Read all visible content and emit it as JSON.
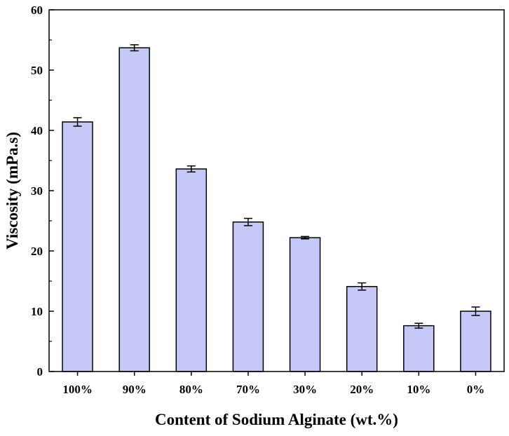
{
  "chart_data": {
    "type": "bar",
    "title": "",
    "xlabel": "Content of Sodium Alginate (wt.%)",
    "ylabel": "Viscosity (mPa.s)",
    "ylim": [
      0,
      60
    ],
    "yticks": [
      0,
      10,
      20,
      30,
      40,
      50,
      60
    ],
    "categories": [
      "100%",
      "90%",
      "80%",
      "70%",
      "30%",
      "20%",
      "10%",
      "0%"
    ],
    "values": [
      41.4,
      53.7,
      33.6,
      24.8,
      22.2,
      14.1,
      7.6,
      10.0
    ],
    "errors": [
      0.7,
      0.5,
      0.5,
      0.6,
      0.2,
      0.6,
      0.4,
      0.7
    ],
    "grid": false,
    "legend": "none",
    "bar_color": "#c6c8f8",
    "edge_color": "#000000"
  }
}
